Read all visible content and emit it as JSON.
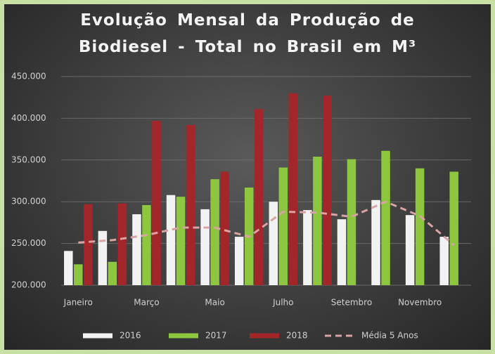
{
  "chart_data": {
    "type": "bar",
    "title": "Evolução Mensal da Produção de Biodiesel - Total no Brasil em M³",
    "categories": [
      "Janeiro",
      null,
      "Março",
      null,
      "Maio",
      null,
      "Julho",
      null,
      "Setembro",
      null,
      "Novembro",
      null
    ],
    "series": [
      {
        "name": "2016",
        "color": "#f2f2f2",
        "values": [
          241000,
          265000,
          285000,
          308000,
          291000,
          258000,
          300000,
          290000,
          279000,
          302000,
          284000,
          258000
        ]
      },
      {
        "name": "2017",
        "color": "#8dc63f",
        "values": [
          225000,
          228000,
          296000,
          306000,
          327000,
          317000,
          341000,
          354000,
          351000,
          361000,
          340000,
          336000
        ]
      },
      {
        "name": "2018",
        "color": "#a3262a",
        "values": [
          297000,
          298000,
          397000,
          392000,
          336000,
          411000,
          430000,
          427000,
          null,
          null,
          null,
          null
        ]
      },
      {
        "name": "Média 5 Anos",
        "type": "line",
        "color": "#d9a3a3",
        "dashed": true,
        "values": [
          251000,
          254000,
          260000,
          269000,
          269000,
          258000,
          288000,
          287000,
          282000,
          300000,
          283000,
          248000
        ]
      }
    ],
    "ylim": [
      200000,
      450000
    ],
    "yticks": [
      {
        "value": 200000,
        "label": "200.000"
      },
      {
        "value": 250000,
        "label": "250.000"
      },
      {
        "value": 300000,
        "label": "300.000"
      },
      {
        "value": 350000,
        "label": "350.000"
      },
      {
        "value": 400000,
        "label": "400.000"
      },
      {
        "value": 450000,
        "label": "450.000"
      }
    ],
    "grid": true,
    "legend": "bottom"
  }
}
